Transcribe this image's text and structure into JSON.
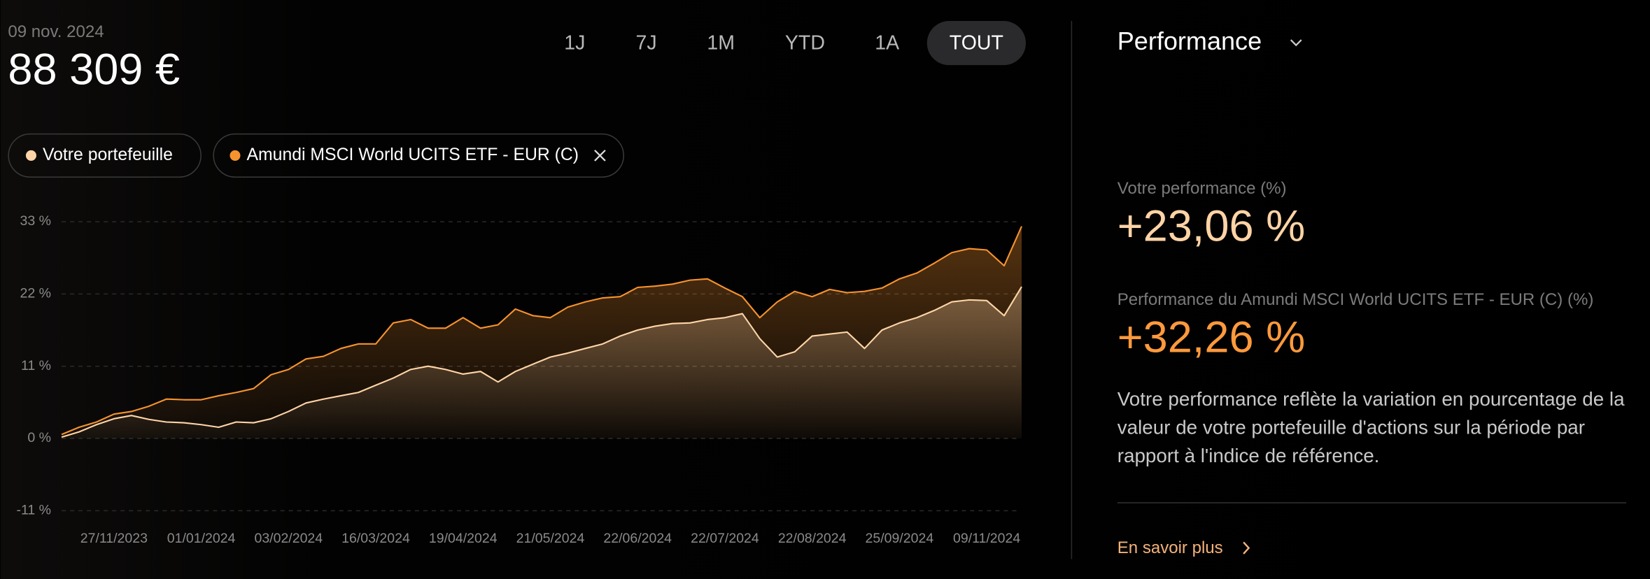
{
  "header": {
    "date": "09 nov. 2024",
    "value": "88 309 €"
  },
  "range_buttons": [
    "1J",
    "7J",
    "1M",
    "YTD",
    "1A",
    "TOUT"
  ],
  "panel": {
    "title": "Performance",
    "label_1": "Votre performance (%)",
    "value_1": "+23,06 %",
    "label_2": "Performance du Amundi MSCI World UCITS ETF - EUR (C) (%)",
    "value_2": "+32,26 %",
    "description": "Votre performance reflète la variation en pourcentage de la valeur de votre portefeuille d'actions sur la période par rapport à l'indice de référence.",
    "link": "En savoir plus"
  },
  "chart_data": {
    "type": "area-line",
    "categories": [
      null,
      null,
      null,
      "27/11/2023",
      null,
      null,
      null,
      null,
      "01/01/2024",
      null,
      null,
      null,
      null,
      "03/02/2024",
      null,
      null,
      null,
      null,
      "16/03/2024",
      null,
      null,
      null,
      null,
      "19/04/2024",
      null,
      null,
      null,
      null,
      "21/05/2024",
      null,
      null,
      null,
      null,
      "22/06/2024",
      null,
      null,
      null,
      null,
      "22/07/2024",
      null,
      null,
      null,
      null,
      "22/08/2024",
      null,
      null,
      null,
      null,
      "25/09/2024",
      null,
      null,
      null,
      null,
      "09/11/2024",
      null,
      null
    ],
    "series": [
      {
        "name": "Votre portefeuille",
        "color": "#ffd5a8",
        "values": [
          0.2,
          1.0,
          2.1,
          3.0,
          3.5,
          2.9,
          2.5,
          2.4,
          2.1,
          1.7,
          2.5,
          2.4,
          3.0,
          4.1,
          5.4,
          6.0,
          6.5,
          7.0,
          8.1,
          9.2,
          10.5,
          11.0,
          10.5,
          9.8,
          10.2,
          8.6,
          10.2,
          11.3,
          12.4,
          13.0,
          13.7,
          14.4,
          15.6,
          16.5,
          17.1,
          17.5,
          17.6,
          18.1,
          18.4,
          19.0,
          15.2,
          12.4,
          13.2,
          15.6,
          15.9,
          16.2,
          13.7,
          16.5,
          17.6,
          18.4,
          19.5,
          20.8,
          21.1,
          21.0,
          18.7,
          23.1
        ]
      },
      {
        "name": "Amundi MSCI World UCITS ETF - EUR (C)",
        "color": "#f7932f",
        "values": [
          0.6,
          1.7,
          2.5,
          3.7,
          4.1,
          4.9,
          6.0,
          5.9,
          5.9,
          6.5,
          7.0,
          7.6,
          9.7,
          10.5,
          12.1,
          12.5,
          13.7,
          14.4,
          14.4,
          17.6,
          18.1,
          16.8,
          16.8,
          18.4,
          16.8,
          17.3,
          19.7,
          18.7,
          18.4,
          20.0,
          20.8,
          21.4,
          21.6,
          23.0,
          23.2,
          23.5,
          24.1,
          24.3,
          22.9,
          21.6,
          18.4,
          20.8,
          22.4,
          21.6,
          22.7,
          22.2,
          22.4,
          22.9,
          24.3,
          25.2,
          26.7,
          28.3,
          28.9,
          28.7,
          26.3,
          32.3
        ]
      }
    ],
    "ylim": [
      -11,
      33
    ],
    "yticks": [
      {
        "value": 33,
        "label": "33 %"
      },
      {
        "value": 22,
        "label": "22 %"
      },
      {
        "value": 11,
        "label": "11 %"
      },
      {
        "value": 0,
        "label": "0 %"
      },
      {
        "value": -11,
        "label": "-11 %"
      }
    ],
    "grid": true
  }
}
